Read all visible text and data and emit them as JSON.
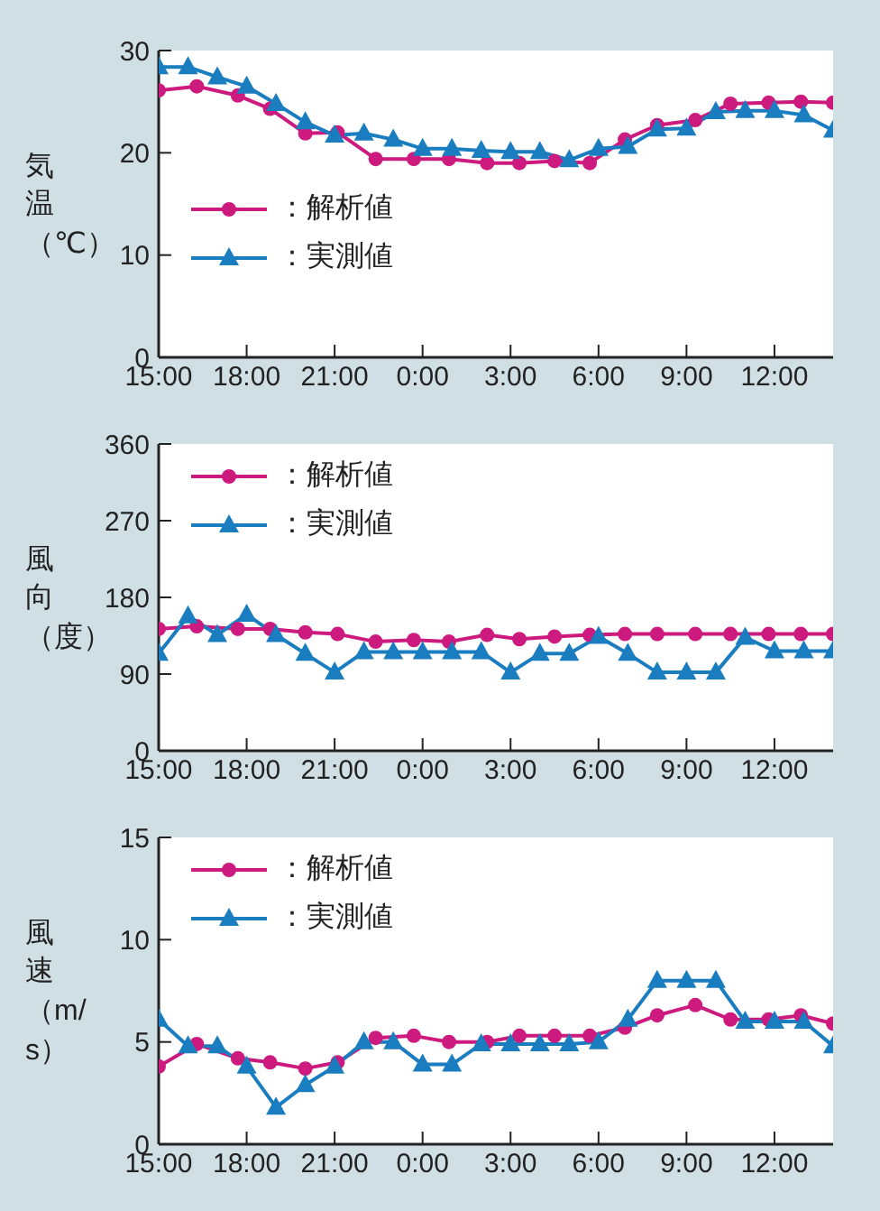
{
  "chart_data": [
    {
      "type": "line",
      "ylabel": "気温（℃）",
      "xlim": [
        "2000-01-01T15:00",
        "2000-01-02T14:00"
      ],
      "xticks": [
        {
          "value": "2000-01-01T15:00",
          "label": "15:00"
        },
        {
          "value": "2000-01-01T18:00",
          "label": "18:00"
        },
        {
          "value": "2000-01-01T21:00",
          "label": "21:00"
        },
        {
          "value": "2000-01-02T00:00",
          "label": "0:00"
        },
        {
          "value": "2000-01-02T03:00",
          "label": "3:00"
        },
        {
          "value": "2000-01-02T06:00",
          "label": "6:00"
        },
        {
          "value": "2000-01-02T09:00",
          "label": "9:00"
        },
        {
          "value": "2000-01-02T12:00",
          "label": "12:00"
        }
      ],
      "ylim": [
        0,
        30
      ],
      "yticks": [
        0,
        10,
        20,
        30
      ],
      "grid": false,
      "legend": "left",
      "series": [
        {
          "name": "：解析値",
          "color": "#cc1a7e",
          "marker": "circle",
          "x": [
            "2000-01-01T15:00",
            "2000-01-01T16:18",
            "2000-01-01T17:42",
            "2000-01-01T18:48",
            "2000-01-01T20:00",
            "2000-01-01T21:06",
            "2000-01-01T22:24",
            "2000-01-01T23:42",
            "2000-01-02T00:54",
            "2000-01-02T02:12",
            "2000-01-02T03:18",
            "2000-01-02T04:30",
            "2000-01-02T05:42",
            "2000-01-02T06:54",
            "2000-01-02T08:00",
            "2000-01-02T09:18",
            "2000-01-02T10:30",
            "2000-01-02T11:48",
            "2000-01-02T12:54",
            "2000-01-02T14:00"
          ],
          "values": [
            26.1,
            26.5,
            25.6,
            24.3,
            21.9,
            22,
            19.4,
            19.4,
            19.4,
            19,
            19,
            19.2,
            19,
            21.3,
            22.7,
            23.2,
            24.8,
            24.9,
            25,
            24.9
          ]
        },
        {
          "name": "：実測値",
          "color": "#1a7dc0",
          "marker": "triangle",
          "x": [
            "2000-01-01T15:00",
            "2000-01-01T16:00",
            "2000-01-01T17:00",
            "2000-01-01T18:00",
            "2000-01-01T19:00",
            "2000-01-01T20:00",
            "2000-01-01T21:00",
            "2000-01-01T22:00",
            "2000-01-01T23:00",
            "2000-01-02T00:00",
            "2000-01-02T01:00",
            "2000-01-02T02:00",
            "2000-01-02T03:00",
            "2000-01-02T04:00",
            "2000-01-02T05:00",
            "2000-01-02T06:00",
            "2000-01-02T07:00",
            "2000-01-02T08:00",
            "2000-01-02T09:00",
            "2000-01-02T10:00",
            "2000-01-02T11:00",
            "2000-01-02T12:00",
            "2000-01-02T13:00",
            "2000-01-02T14:00"
          ],
          "values": [
            28.4,
            28.4,
            27.4,
            26.5,
            24.8,
            23,
            21.7,
            21.9,
            21.3,
            20.4,
            20.4,
            20.2,
            20.1,
            20.1,
            19.3,
            20.4,
            20.6,
            22.3,
            22.4,
            24,
            24.1,
            24.1,
            23.7,
            22.2
          ]
        }
      ]
    },
    {
      "type": "line",
      "ylabel": "風向（度）",
      "xlim": [
        "2000-01-01T15:00",
        "2000-01-02T14:00"
      ],
      "xticks": [
        {
          "value": "2000-01-01T15:00",
          "label": "15:00"
        },
        {
          "value": "2000-01-01T18:00",
          "label": "18:00"
        },
        {
          "value": "2000-01-01T21:00",
          "label": "21:00"
        },
        {
          "value": "2000-01-02T00:00",
          "label": "0:00"
        },
        {
          "value": "2000-01-02T03:00",
          "label": "3:00"
        },
        {
          "value": "2000-01-02T06:00",
          "label": "6:00"
        },
        {
          "value": "2000-01-02T09:00",
          "label": "9:00"
        },
        {
          "value": "2000-01-02T12:00",
          "label": "12:00"
        }
      ],
      "ylim": [
        0,
        360
      ],
      "yticks": [
        0,
        90,
        180,
        270,
        360
      ],
      "grid": false,
      "legend": "top left",
      "series": [
        {
          "name": "：解析値",
          "color": "#cc1a7e",
          "marker": "circle",
          "x": [
            "2000-01-01T15:00",
            "2000-01-01T16:18",
            "2000-01-01T17:42",
            "2000-01-01T18:48",
            "2000-01-01T20:00",
            "2000-01-01T21:06",
            "2000-01-01T22:24",
            "2000-01-01T23:42",
            "2000-01-02T00:54",
            "2000-01-02T02:12",
            "2000-01-02T03:18",
            "2000-01-02T04:30",
            "2000-01-02T05:42",
            "2000-01-02T06:54",
            "2000-01-02T08:00",
            "2000-01-02T09:18",
            "2000-01-02T10:30",
            "2000-01-02T11:48",
            "2000-01-02T12:54",
            "2000-01-02T14:00"
          ],
          "values": [
            143,
            146,
            143,
            143,
            139,
            137,
            128,
            130,
            128,
            136,
            131,
            134,
            136,
            137,
            137,
            137,
            137,
            137,
            137,
            137
          ]
        },
        {
          "name": "：実測値",
          "color": "#1a7dc0",
          "marker": "triangle",
          "x": [
            "2000-01-01T15:00",
            "2000-01-01T16:00",
            "2000-01-01T17:00",
            "2000-01-01T18:00",
            "2000-01-01T19:00",
            "2000-01-01T20:00",
            "2000-01-01T21:00",
            "2000-01-01T22:00",
            "2000-01-01T23:00",
            "2000-01-02T00:00",
            "2000-01-02T01:00",
            "2000-01-02T02:00",
            "2000-01-02T03:00",
            "2000-01-02T04:00",
            "2000-01-02T05:00",
            "2000-01-02T06:00",
            "2000-01-02T07:00",
            "2000-01-02T08:00",
            "2000-01-02T09:00",
            "2000-01-02T10:00",
            "2000-01-02T11:00",
            "2000-01-02T12:00",
            "2000-01-02T13:00",
            "2000-01-02T14:00"
          ],
          "values": [
            114,
            158,
            136,
            160,
            136,
            114,
            92,
            116,
            116,
            116,
            116,
            116,
            92,
            114,
            114,
            134,
            114,
            92,
            92,
            92,
            133,
            117,
            117,
            117
          ]
        }
      ]
    },
    {
      "type": "line",
      "ylabel": "風速（m/s）",
      "xlim": [
        "2000-01-01T15:00",
        "2000-01-02T14:00"
      ],
      "xticks": [
        {
          "value": "2000-01-01T15:00",
          "label": "15:00"
        },
        {
          "value": "2000-01-01T18:00",
          "label": "18:00"
        },
        {
          "value": "2000-01-01T21:00",
          "label": "21:00"
        },
        {
          "value": "2000-01-02T00:00",
          "label": "0:00"
        },
        {
          "value": "2000-01-02T03:00",
          "label": "3:00"
        },
        {
          "value": "2000-01-02T06:00",
          "label": "6:00"
        },
        {
          "value": "2000-01-02T09:00",
          "label": "9:00"
        },
        {
          "value": "2000-01-02T12:00",
          "label": "12:00"
        }
      ],
      "ylim": [
        0,
        15
      ],
      "yticks": [
        0,
        5,
        10,
        15
      ],
      "grid": false,
      "legend": "top left",
      "series": [
        {
          "name": "：解析値",
          "color": "#cc1a7e",
          "marker": "circle",
          "x": [
            "2000-01-01T15:00",
            "2000-01-01T16:18",
            "2000-01-01T17:42",
            "2000-01-01T18:48",
            "2000-01-01T20:00",
            "2000-01-01T21:06",
            "2000-01-01T22:24",
            "2000-01-01T23:42",
            "2000-01-02T00:54",
            "2000-01-02T02:12",
            "2000-01-02T03:18",
            "2000-01-02T04:30",
            "2000-01-02T05:42",
            "2000-01-02T06:54",
            "2000-01-02T08:00",
            "2000-01-02T09:18",
            "2000-01-02T10:30",
            "2000-01-02T11:48",
            "2000-01-02T12:54",
            "2000-01-02T14:00"
          ],
          "values": [
            3.8,
            4.9,
            4.2,
            4,
            3.7,
            4,
            5.2,
            5.3,
            5,
            5,
            5.3,
            5.3,
            5.3,
            5.7,
            6.3,
            6.8,
            6.1,
            6.1,
            6.3,
            5.9
          ]
        },
        {
          "name": "：実測値",
          "color": "#1a7dc0",
          "marker": "triangle",
          "x": [
            "2000-01-01T15:00",
            "2000-01-01T16:00",
            "2000-01-01T17:00",
            "2000-01-01T18:00",
            "2000-01-01T19:00",
            "2000-01-01T20:00",
            "2000-01-01T21:00",
            "2000-01-01T22:00",
            "2000-01-01T23:00",
            "2000-01-02T00:00",
            "2000-01-02T01:00",
            "2000-01-02T02:00",
            "2000-01-02T03:00",
            "2000-01-02T04:00",
            "2000-01-02T05:00",
            "2000-01-02T06:00",
            "2000-01-02T07:00",
            "2000-01-02T08:00",
            "2000-01-02T09:00",
            "2000-01-02T10:00",
            "2000-01-02T11:00",
            "2000-01-02T12:00",
            "2000-01-02T13:00",
            "2000-01-02T14:00"
          ],
          "values": [
            6.1,
            4.8,
            4.8,
            3.8,
            1.8,
            2.9,
            3.8,
            5,
            5,
            3.9,
            3.9,
            4.9,
            4.9,
            4.9,
            4.9,
            5,
            6.1,
            8,
            8,
            8,
            6,
            6,
            6,
            4.8
          ]
        }
      ]
    }
  ]
}
